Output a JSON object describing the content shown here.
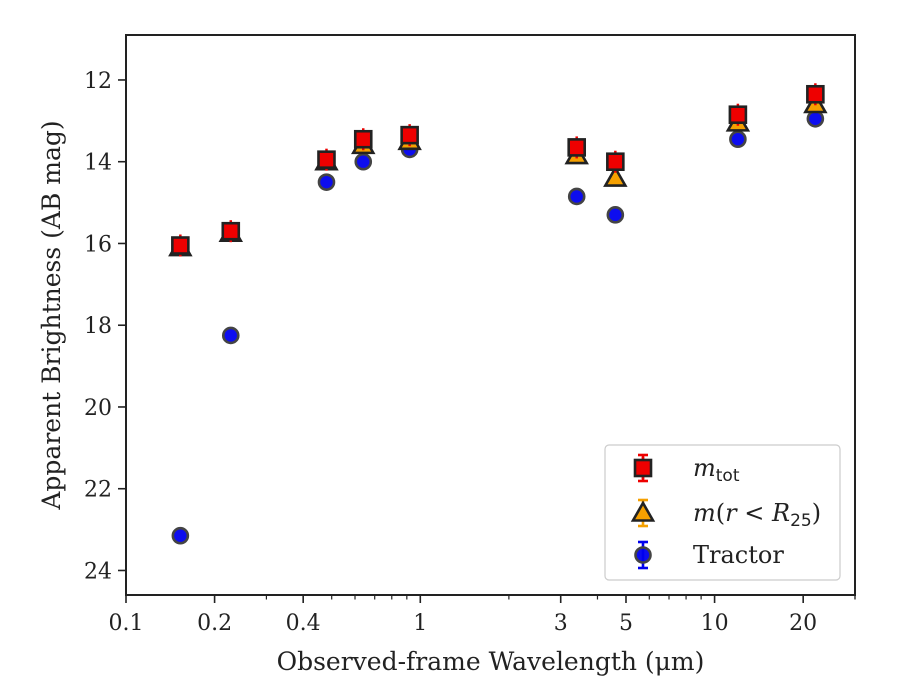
{
  "chart_data": {
    "type": "scatter",
    "xlabel": "Observed-frame Wavelength (μm)",
    "ylabel": "Apparent Brightness (AB mag)",
    "xscale": "log",
    "xlim": [
      0.1,
      30
    ],
    "ylim": [
      24.6,
      10.9
    ],
    "y_inverted": true,
    "x_ticks": [
      {
        "value": 0.1,
        "label": "0.1"
      },
      {
        "value": 0.2,
        "label": "0.2"
      },
      {
        "value": 0.4,
        "label": "0.4"
      },
      {
        "value": 1,
        "label": "1"
      },
      {
        "value": 3,
        "label": "3"
      },
      {
        "value": 5,
        "label": "5"
      },
      {
        "value": 10,
        "label": "10"
      },
      {
        "value": 20,
        "label": "20"
      }
    ],
    "y_ticks": [
      {
        "value": 12,
        "label": "12"
      },
      {
        "value": 14,
        "label": "14"
      },
      {
        "value": 16,
        "label": "16"
      },
      {
        "value": 18,
        "label": "18"
      },
      {
        "value": 20,
        "label": "20"
      },
      {
        "value": 22,
        "label": "22"
      },
      {
        "value": 24,
        "label": "24"
      }
    ],
    "grid": false,
    "legend_position": "lower-right",
    "series": [
      {
        "name": "m_tot",
        "legend_label": "m_tot",
        "marker": "square",
        "color": "#ee0000",
        "edge_color": "#222222",
        "points": [
          {
            "x": 0.153,
            "y": 16.05
          },
          {
            "x": 0.227,
            "y": 15.7
          },
          {
            "x": 0.48,
            "y": 13.95
          },
          {
            "x": 0.64,
            "y": 13.45
          },
          {
            "x": 0.92,
            "y": 13.35
          },
          {
            "x": 3.4,
            "y": 13.65
          },
          {
            "x": 4.6,
            "y": 14.0
          },
          {
            "x": 12.0,
            "y": 12.85
          },
          {
            "x": 22.0,
            "y": 12.35
          }
        ]
      },
      {
        "name": "m(r < R25)",
        "legend_label": "m(r < R25)",
        "marker": "triangle",
        "color": "#f5a000",
        "edge_color": "#222222",
        "points": [
          {
            "x": 0.153,
            "y": 16.1
          },
          {
            "x": 0.227,
            "y": 15.75
          },
          {
            "x": 0.48,
            "y": 14.0
          },
          {
            "x": 0.64,
            "y": 13.6
          },
          {
            "x": 0.92,
            "y": 13.5
          },
          {
            "x": 3.4,
            "y": 13.85
          },
          {
            "x": 4.6,
            "y": 14.4
          },
          {
            "x": 12.0,
            "y": 13.05
          },
          {
            "x": 22.0,
            "y": 12.6
          }
        ]
      },
      {
        "name": "Tractor",
        "legend_label": "Tractor",
        "marker": "circle",
        "color": "#0000ee",
        "edge_color": "#444444",
        "points": [
          {
            "x": 0.153,
            "y": 23.15
          },
          {
            "x": 0.227,
            "y": 18.25
          },
          {
            "x": 0.48,
            "y": 14.5
          },
          {
            "x": 0.64,
            "y": 14.0
          },
          {
            "x": 0.92,
            "y": 13.7
          },
          {
            "x": 3.4,
            "y": 14.85
          },
          {
            "x": 4.6,
            "y": 15.3
          },
          {
            "x": 12.0,
            "y": 13.45
          },
          {
            "x": 22.0,
            "y": 12.95
          }
        ]
      }
    ]
  }
}
